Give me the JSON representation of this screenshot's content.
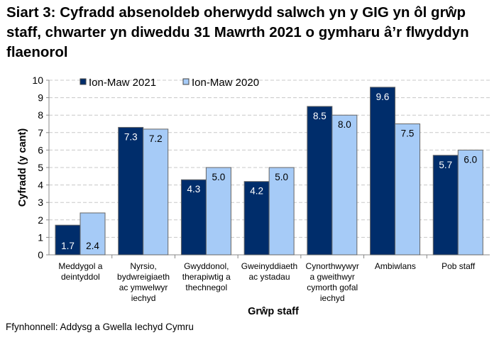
{
  "chart_data": {
    "type": "bar",
    "title": "Siart 3: Cyfradd absenoldeb oherwydd salwch yn y GIG yn ôl grŵp staff, chwarter yn diweddu 31 Mawrth 2021 o gymharu â’r flwyddyn flaenorol",
    "xlabel": "Grŵp staff",
    "ylabel": "Cyfradd (y cant)",
    "ylim": [
      0,
      10
    ],
    "yticks": [
      "0",
      "1",
      "2",
      "3",
      "4",
      "5",
      "6",
      "7",
      "8",
      "9",
      "10"
    ],
    "grid": true,
    "legend_position": "top",
    "categories": [
      [
        "Meddygol a",
        "deintyddol"
      ],
      [
        "Nyrsio,",
        "bydwreigiaeth",
        "ac ymwelwyr",
        "iechyd"
      ],
      [
        "Gwyddonol,",
        "therapiwtig a",
        "thechnegol"
      ],
      [
        "Gweinyddiaeth",
        "ac ystadau"
      ],
      [
        "Cynorthwywyr",
        "a gweithwyr",
        "cymorth gofal",
        "iechyd"
      ],
      [
        "Ambiwlans"
      ],
      [
        "Pob staff"
      ]
    ],
    "series": [
      {
        "name": "Ion-Maw 2021",
        "color": "#002D6B",
        "values": [
          1.7,
          7.3,
          4.3,
          4.2,
          8.5,
          9.6,
          5.7
        ]
      },
      {
        "name": "Ion-Maw 2020",
        "color": "#A6CBF7",
        "values": [
          2.4,
          7.2,
          5.0,
          5.0,
          8.0,
          7.5,
          6.0
        ]
      }
    ]
  },
  "source": "Ffynhonnell: Addysg a Gwella Iechyd Cymru"
}
